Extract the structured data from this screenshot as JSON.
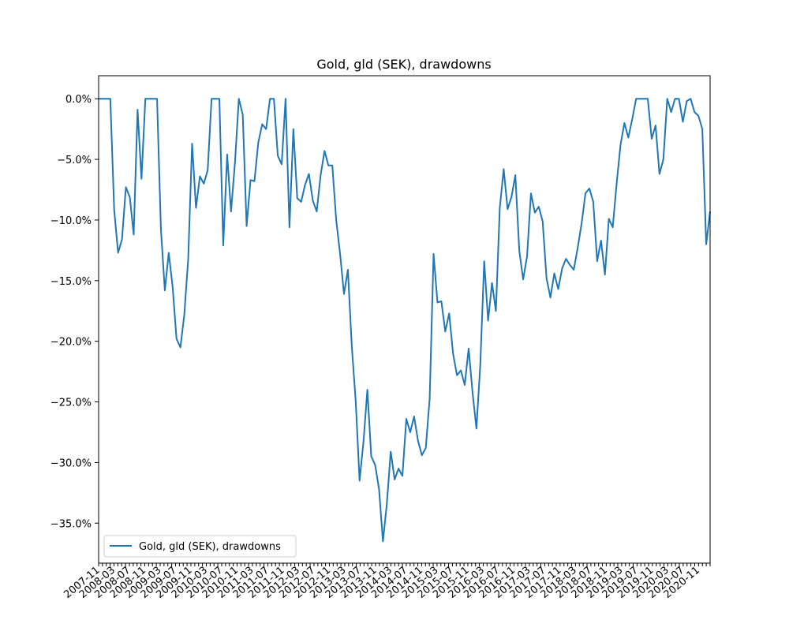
{
  "chart_data": {
    "type": "line",
    "title": "Gold, gld (SEK), drawdowns",
    "xlabel": "",
    "ylabel": "",
    "legend": {
      "placement": "lower-left",
      "entries": [
        "Gold, gld (SEK), drawdowns"
      ]
    },
    "grid": false,
    "color": "#1f77b4",
    "x_start": "2007-11",
    "x_end": "2021-02",
    "x_tick_labels": [
      "2007-11",
      "2008-03",
      "2008-07",
      "2008-11",
      "2009-03",
      "2009-07",
      "2009-11",
      "2010-03",
      "2010-07",
      "2010-11",
      "2011-03",
      "2011-07",
      "2011-11",
      "2012-03",
      "2012-07",
      "2012-11",
      "2013-03",
      "2013-07",
      "2013-11",
      "2014-03",
      "2014-07",
      "2014-11",
      "2015-03",
      "2015-07",
      "2015-11",
      "2016-03",
      "2016-07",
      "2016-11",
      "2017-03",
      "2017-07",
      "2017-11",
      "2018-03",
      "2018-07",
      "2018-11",
      "2019-03",
      "2019-07",
      "2019-11",
      "2020-03",
      "2020-07",
      "2020-11"
    ],
    "y_tick_labels": [
      "0.0%",
      "−5.0%",
      "−10.0%",
      "−15.0%",
      "−20.0%",
      "−25.0%",
      "−30.0%",
      "−35.0%"
    ],
    "ylim": [
      -38.3,
      1.9
    ],
    "series": [
      {
        "name": "Gold, gld (SEK), drawdowns",
        "values": [
          0,
          0,
          0,
          0,
          -9.2,
          -12.7,
          -11.6,
          -7.3,
          -8.1,
          -11.2,
          -0.9,
          -6.6,
          0,
          0,
          0,
          0,
          -10.8,
          -15.8,
          -12.7,
          -15.5,
          -19.8,
          -20.5,
          -17.8,
          -13.2,
          -3.7,
          -9.0,
          -6.4,
          -7.0,
          -5.9,
          0,
          0,
          0,
          -12.1,
          -4.6,
          -9.3,
          -5.3,
          0,
          -1.3,
          -10.5,
          -6.7,
          -6.8,
          -3.6,
          -2.1,
          -2.5,
          0,
          0,
          -4.7,
          -5.4,
          0,
          -10.6,
          -2.5,
          -8.2,
          -8.5,
          -7.1,
          -6.2,
          -8.4,
          -9.3,
          -6.3,
          -4.3,
          -5.5,
          -5.5,
          -10.0,
          -12.8,
          -16.1,
          -14.1,
          -20.4,
          -24.9,
          -31.5,
          -28.3,
          -24.0,
          -29.5,
          -30.2,
          -32.2,
          -36.5,
          -33.4,
          -29.1,
          -31.4,
          -30.5,
          -31.1,
          -26.4,
          -27.5,
          -26.2,
          -28.2,
          -29.4,
          -28.8,
          -24.7,
          -12.8,
          -16.8,
          -16.7,
          -19.2,
          -17.7,
          -21.0,
          -22.8,
          -22.4,
          -23.6,
          -20.6,
          -24.2,
          -27.2,
          -21.9,
          -13.4,
          -18.3,
          -15.2,
          -17.5,
          -9.0,
          -5.8,
          -9.1,
          -8.1,
          -6.3,
          -12.5,
          -14.9,
          -13.0,
          -7.8,
          -9.4,
          -8.9,
          -10.1,
          -14.8,
          -16.4,
          -14.4,
          -15.7,
          -14.0,
          -13.2,
          -13.7,
          -14.1,
          -12.3,
          -10.3,
          -7.8,
          -7.4,
          -8.5,
          -13.4,
          -11.7,
          -14.5,
          -9.9,
          -10.6,
          -7.0,
          -3.8,
          -2.0,
          -3.2,
          -1.7,
          0,
          0,
          0,
          0,
          -3.3,
          -2.2,
          -6.2,
          -5.0,
          0,
          -1.1,
          0,
          0,
          -1.9,
          -0.2,
          0,
          -1.1,
          -1.4,
          -2.5,
          -12.0,
          -9.3
        ]
      }
    ]
  }
}
